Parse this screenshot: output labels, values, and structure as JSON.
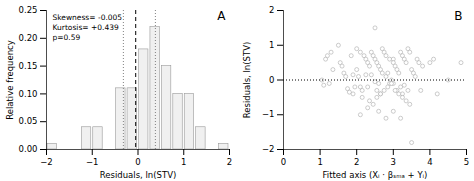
{
  "chart_data": [
    {
      "type": "histogram",
      "title": "A",
      "bins": [
        -2.0,
        -1.75,
        -1.5,
        -1.25,
        -1.0,
        -0.75,
        -0.5,
        -0.25,
        0.0,
        0.25,
        0.5,
        0.75,
        1.0,
        1.25,
        1.5,
        1.75,
        2.0
      ],
      "values": [
        0.01,
        0.0,
        0.0,
        0.04,
        0.04,
        0.0,
        0.11,
        0.11,
        0.18,
        0.22,
        0.15,
        0.1,
        0.1,
        0.04,
        0.0,
        0.01
      ],
      "color": "#f0f0f0",
      "edge_color": "#999999",
      "lines": [
        {
          "x": -0.05,
          "color": "black",
          "line_style": "dashed"
        },
        {
          "x": -0.32,
          "color": "gray",
          "line_style": "dotted"
        },
        {
          "x": 0.38,
          "color": "gray",
          "line_style": "dotted"
        }
      ],
      "xlabel": "Residuals, ln(STV)",
      "ylabel": "Relative frequency",
      "xlim": [
        -2,
        2
      ],
      "ylim": [
        0,
        0.25
      ],
      "xticks": [
        -2,
        -1,
        0,
        1,
        2
      ],
      "yticks": [
        {
          "value": 0.0,
          "label": "0.00"
        },
        0.05,
        {
          "value": 0.1,
          "label": "0.10"
        },
        0.15,
        {
          "value": 0.2,
          "label": "0.20"
        },
        0.25
      ],
      "annotation": "Skewness= -0.005\nKurtosis= +0.439\np=0.59",
      "grid": false
    },
    {
      "type": "scatter",
      "title": "B",
      "x": [
        1.05,
        1.1,
        1.15,
        1.2,
        1.25,
        1.3,
        1.35,
        1.5,
        1.55,
        1.6,
        1.65,
        1.7,
        1.75,
        1.8,
        1.85,
        1.9,
        1.95,
        2.0,
        2.0,
        2.05,
        2.1,
        2.1,
        2.15,
        2.2,
        2.25,
        2.25,
        2.3,
        2.3,
        2.35,
        2.4,
        2.4,
        2.45,
        2.5,
        2.5,
        2.5,
        2.55,
        2.55,
        2.6,
        2.6,
        2.65,
        2.65,
        2.7,
        2.7,
        2.75,
        2.75,
        2.8,
        2.8,
        2.85,
        2.9,
        2.9,
        2.95,
        3.0,
        3.0,
        3.0,
        3.05,
        3.1,
        3.1,
        3.15,
        3.2,
        3.2,
        3.25,
        3.25,
        3.3,
        3.3,
        3.35,
        3.4,
        3.4,
        3.45,
        3.5,
        3.55,
        3.6,
        3.65,
        3.7,
        3.75,
        3.8,
        4.0,
        4.1,
        4.2,
        4.5,
        4.85,
        1.9,
        2.15,
        2.35,
        2.45,
        2.55,
        2.65,
        2.85,
        2.95,
        3.05,
        3.15,
        3.25,
        3.35,
        3.45,
        2.1,
        2.3,
        2.6,
        2.8,
        3.0,
        3.2,
        3.5
      ],
      "values": [
        0.0,
        -0.15,
        0.6,
        0.7,
        -0.1,
        0.8,
        0.3,
        1.0,
        0.5,
        0.4,
        0.2,
        0.1,
        -0.25,
        -0.35,
        0.7,
        0.15,
        -0.2,
        0.9,
        0.3,
        0.1,
        -0.2,
        0.8,
        -0.3,
        0.7,
        0.6,
        0.15,
        0.5,
        -0.2,
        0.4,
        0.8,
        0.15,
        0.7,
        1.5,
        0.6,
        -0.05,
        0.5,
        -0.3,
        0.4,
        -0.1,
        0.3,
        -0.4,
        0.9,
        0.2,
        0.8,
        -0.3,
        0.7,
        0.1,
        0.2,
        0.6,
        -0.1,
        0.0,
        0.6,
        0.5,
        -0.1,
        0.4,
        0.3,
        -0.3,
        0.2,
        0.8,
        -0.2,
        0.7,
        -0.4,
        0.6,
        -0.15,
        0.5,
        0.9,
        -0.3,
        0.8,
        0.3,
        0.2,
        0.1,
        0.6,
        0.5,
        -0.3,
        0.4,
        0.5,
        0.6,
        -0.4,
        0.0,
        0.5,
        -0.4,
        -0.5,
        -0.6,
        -0.7,
        -0.5,
        -0.4,
        -0.2,
        -0.1,
        -0.3,
        -0.4,
        -0.5,
        -0.6,
        -0.7,
        -1.0,
        -0.8,
        -0.9,
        -1.1,
        -0.9,
        -1.1,
        -1.8
      ],
      "color": "white",
      "edge_color": "#aaaaaa",
      "marker": "circle",
      "lines": [
        {
          "y": 0.0,
          "color": "black",
          "line_style": "dotted"
        }
      ],
      "xlabel": "Fitted axis (Xᵢ · βₛₘₐ + Yᵢ)",
      "ylabel": "Residuals, ln(STV)",
      "xlim": [
        0,
        5
      ],
      "ylim": [
        -2,
        2
      ],
      "xticks": [
        0,
        1,
        2,
        3,
        4,
        5
      ],
      "yticks": [
        -2,
        -1,
        0,
        1,
        2
      ],
      "grid": false
    }
  ]
}
